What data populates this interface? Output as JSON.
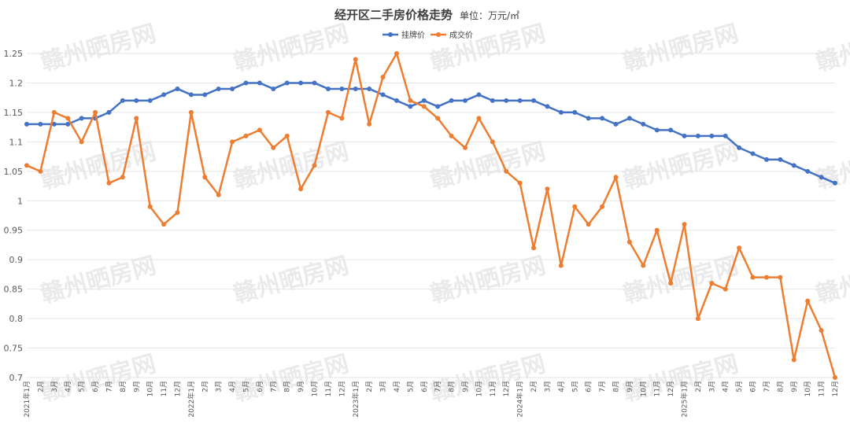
{
  "header": {
    "title": "经开区二手房价格走势",
    "unit": "单位：万元/㎡"
  },
  "watermark": "赣州晒房网",
  "colors": {
    "listing": "#4472C4",
    "deal": "#ED7D31",
    "grid": "#e6e6e6",
    "text": "#595959"
  },
  "chart_data": {
    "type": "line",
    "title": "经开区二手房价格走势",
    "xlabel": "",
    "ylabel": "",
    "ylim": [
      0.7,
      1.25
    ],
    "yticks": [
      "0.7",
      "0.75",
      "0.8",
      "0.85",
      "0.9",
      "0.95",
      "1",
      "1.05",
      "1.1",
      "1.15",
      "1.2",
      "1.25"
    ],
    "grid": true,
    "legend_position": "top-center",
    "categories": [
      "2021年1月",
      "2月",
      "3月",
      "4月",
      "5月",
      "6月",
      "7月",
      "8月",
      "9月",
      "10月",
      "11月",
      "12月",
      "2022年1月",
      "2月",
      "3月",
      "4月",
      "5月",
      "6月",
      "7月",
      "8月",
      "9月",
      "10月",
      "11月",
      "12月",
      "2023年1月",
      "2月",
      "3月",
      "4月",
      "5月",
      "6月",
      "7月",
      "8月",
      "9月",
      "10月",
      "11月",
      "12月",
      "2024年1月",
      "2月",
      "3月",
      "4月",
      "5月",
      "6月",
      "7月",
      "8月",
      "9月",
      "10月",
      "11月",
      "12月",
      "2025年1月",
      "2月",
      "3月",
      "4月",
      "5月",
      "6月",
      "7月",
      "8月",
      "9月",
      "10月",
      "11月",
      "12月"
    ],
    "series": [
      {
        "name": "挂牌价",
        "color": "#4472C4",
        "values": [
          1.13,
          1.13,
          1.13,
          1.13,
          1.14,
          1.14,
          1.15,
          1.17,
          1.17,
          1.17,
          1.18,
          1.19,
          1.18,
          1.18,
          1.19,
          1.19,
          1.2,
          1.2,
          1.19,
          1.2,
          1.2,
          1.2,
          1.19,
          1.19,
          1.19,
          1.19,
          1.18,
          1.17,
          1.16,
          1.17,
          1.16,
          1.17,
          1.17,
          1.18,
          1.17,
          1.17,
          1.17,
          1.17,
          1.16,
          1.15,
          1.15,
          1.14,
          1.14,
          1.13,
          1.14,
          1.13,
          1.12,
          1.12,
          1.11,
          1.11,
          1.11,
          1.11,
          1.09,
          1.08,
          1.07,
          1.07,
          1.06,
          1.05,
          1.04,
          1.03
        ]
      },
      {
        "name": "成交价",
        "color": "#ED7D31",
        "values": [
          1.06,
          1.05,
          1.15,
          1.14,
          1.1,
          1.15,
          1.03,
          1.04,
          1.14,
          0.99,
          0.96,
          0.98,
          1.15,
          1.04,
          1.01,
          1.1,
          1.11,
          1.12,
          1.09,
          1.11,
          1.02,
          1.06,
          1.15,
          1.14,
          1.24,
          1.13,
          1.21,
          1.25,
          1.17,
          1.16,
          1.14,
          1.11,
          1.09,
          1.14,
          1.1,
          1.05,
          1.03,
          0.92,
          1.02,
          0.89,
          0.99,
          0.96,
          0.99,
          1.04,
          0.93,
          0.89,
          0.95,
          0.86,
          0.96,
          0.8,
          0.86,
          0.85,
          0.92,
          0.87,
          0.87,
          0.87,
          0.73,
          0.83,
          0.78,
          0.7
        ]
      }
    ]
  }
}
